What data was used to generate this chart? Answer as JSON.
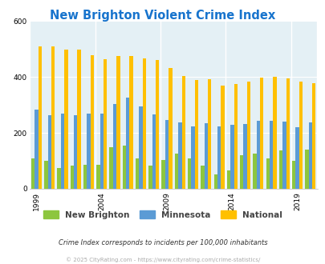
{
  "title": "New Brighton Violent Crime Index",
  "years": [
    1999,
    2000,
    2001,
    2002,
    2003,
    2004,
    2005,
    2006,
    2007,
    2008,
    2009,
    2010,
    2011,
    2012,
    2013,
    2014,
    2015,
    2016,
    2017,
    2018,
    2019,
    2020
  ],
  "new_brighton": [
    110,
    100,
    73,
    83,
    87,
    85,
    148,
    155,
    110,
    82,
    103,
    125,
    110,
    82,
    52,
    65,
    120,
    125,
    110,
    138,
    100,
    140
  ],
  "minnesota": [
    283,
    262,
    268,
    263,
    270,
    270,
    302,
    325,
    295,
    265,
    247,
    237,
    224,
    234,
    224,
    228,
    231,
    244,
    244,
    239,
    220,
    237
  ],
  "national": [
    510,
    510,
    498,
    498,
    478,
    465,
    474,
    476,
    466,
    460,
    431,
    405,
    389,
    391,
    368,
    374,
    383,
    399,
    400,
    395,
    383,
    379
  ],
  "color_nb": "#8dc63f",
  "color_mn": "#5b9bd5",
  "color_nat": "#ffc000",
  "bg_color": "#e4f0f5",
  "ylim": [
    0,
    600
  ],
  "yticks": [
    0,
    200,
    400,
    600
  ],
  "subtitle": "Crime Index corresponds to incidents per 100,000 inhabitants",
  "footer": "© 2025 CityRating.com - https://www.cityrating.com/crime-statistics/",
  "legend_labels": [
    "New Brighton",
    "Minnesota",
    "National"
  ],
  "xtick_years": [
    1999,
    2004,
    2009,
    2014,
    2019
  ]
}
